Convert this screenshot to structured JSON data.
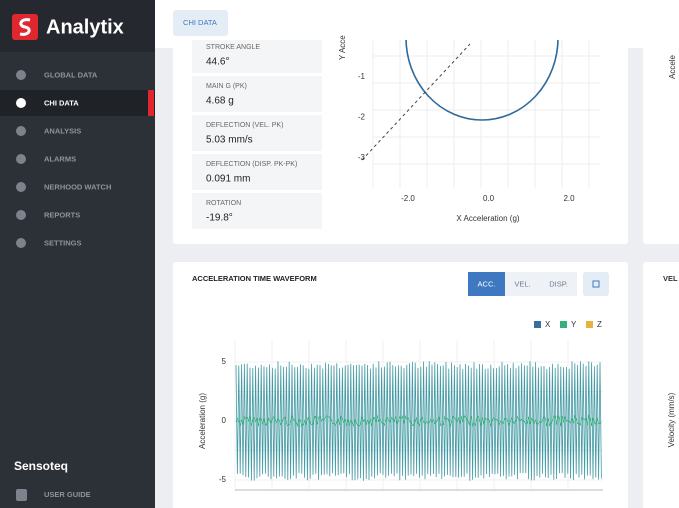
{
  "sidebar": {
    "brand": "Analytix",
    "nav": [
      "GLOBAL DATA",
      "CHI DATA",
      "ANALYSIS",
      "ALARMS",
      "NERHOOD WATCH",
      "REPORTS",
      "SETTINGS"
    ],
    "active": 1,
    "company": "Sensoteq",
    "user_guide": "USER GUIDE"
  },
  "tab": "CHI DATA",
  "metrics": [
    {
      "label": "STROKE ANGLE",
      "value": "44.6°"
    },
    {
      "label": "MAIN G (PK)",
      "value": "4.68 g"
    },
    {
      "label": "DEFLECTION (VEL. PK)",
      "value": "5.03 mm/s"
    },
    {
      "label": "DEFLECTION (DISP. PK-PK)",
      "value": "0.091 mm"
    },
    {
      "label": "ROTATION",
      "value": "-19.8°"
    }
  ],
  "orbit": {
    "y_label": "Y Acce",
    "x_label": "X Acceleration (g)",
    "yticks": [
      "-1",
      "-2",
      "-3"
    ],
    "xticks": [
      "-2.0",
      "0.0",
      "2.0"
    ]
  },
  "waveform": {
    "title": "ACCELERATION TIME WAVEFORM",
    "buttons": [
      "ACC.",
      "VEL.",
      "DISP."
    ],
    "active": 0,
    "legend": [
      {
        "name": "X",
        "color": "#3a6e9e"
      },
      {
        "name": "Y",
        "color": "#35b07a"
      },
      {
        "name": "Z",
        "color": "#e6b43a"
      }
    ],
    "y_label": "Acceleration (g)",
    "yticks": [
      "5",
      "0",
      "-5"
    ]
  },
  "right": {
    "orbit_y_label": "Accele",
    "title": "VEL",
    "y_label": "Velocity (mm/s)"
  }
}
